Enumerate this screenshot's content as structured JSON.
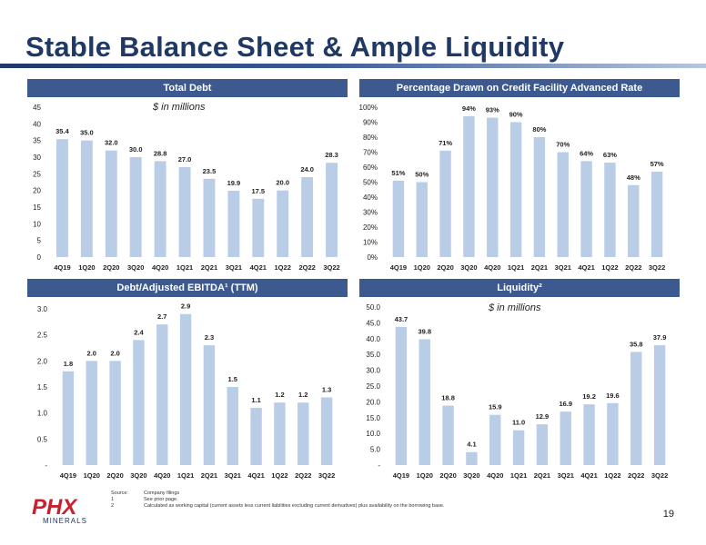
{
  "page": {
    "title": "Stable Balance Sheet & Ample Liquidity",
    "page_number": "19",
    "footnotes": [
      {
        "key": "Source:",
        "text": "Company filings"
      },
      {
        "key": "1",
        "text": "See prior page."
      },
      {
        "key": "2",
        "text": "Calculated as working capital (current assets less current liabilities excluding current derivatives) plus availability on the borrowing base."
      }
    ],
    "logo_text": "PHX",
    "logo_subtext": "MINERALS"
  },
  "colors": {
    "bar": "#b9cde6",
    "header": "#3c5a8f",
    "title": "#1f3864",
    "logo_red": "#c8202f",
    "logo_blue": "#1f3864"
  },
  "chart_data": [
    {
      "type": "bar",
      "title": "Total Debt",
      "subtitle": "$ in millions",
      "categories": [
        "4Q19",
        "1Q20",
        "2Q20",
        "3Q20",
        "4Q20",
        "1Q21",
        "2Q21",
        "3Q21",
        "4Q21",
        "1Q22",
        "2Q22",
        "3Q22"
      ],
      "values": [
        35.4,
        35.0,
        32.0,
        30.0,
        28.8,
        27.0,
        23.5,
        19.9,
        17.5,
        20.0,
        24.0,
        28.3
      ],
      "labels": [
        "35.4",
        "35.0",
        "32.0",
        "30.0",
        "28.8",
        "27.0",
        "23.5",
        "19.9",
        "17.5",
        "20.0",
        "24.0",
        "28.3"
      ],
      "yticks": [
        "0",
        "5",
        "10",
        "15",
        "20",
        "25",
        "30",
        "35",
        "40",
        "45"
      ],
      "ylim": [
        0,
        45
      ]
    },
    {
      "type": "bar",
      "title": "Percentage Drawn on Credit Facility Advanced Rate",
      "subtitle": "",
      "categories": [
        "4Q19",
        "1Q20",
        "2Q20",
        "3Q20",
        "4Q20",
        "1Q21",
        "2Q21",
        "3Q21",
        "4Q21",
        "1Q22",
        "2Q22",
        "3Q22"
      ],
      "values": [
        51,
        50,
        71,
        94,
        93,
        90,
        80,
        70,
        64,
        63,
        48,
        57
      ],
      "labels": [
        "51%",
        "50%",
        "71%",
        "94%",
        "93%",
        "90%",
        "80%",
        "70%",
        "64%",
        "63%",
        "48%",
        "57%"
      ],
      "yticks": [
        "0%",
        "10%",
        "20%",
        "30%",
        "40%",
        "50%",
        "60%",
        "70%",
        "80%",
        "90%",
        "100%"
      ],
      "ylim": [
        0,
        100
      ]
    },
    {
      "type": "bar",
      "title": "Debt/Adjusted EBITDA¹ (TTM)",
      "subtitle": "",
      "categories": [
        "4Q19",
        "1Q20",
        "2Q20",
        "3Q20",
        "4Q20",
        "1Q21",
        "2Q21",
        "3Q21",
        "4Q21",
        "1Q22",
        "2Q22",
        "3Q22"
      ],
      "values": [
        1.8,
        2.0,
        2.0,
        2.4,
        2.7,
        2.9,
        2.3,
        1.5,
        1.1,
        1.2,
        1.2,
        1.3
      ],
      "labels": [
        "1.8",
        "2.0",
        "2.0",
        "2.4",
        "2.7",
        "2.9",
        "2.3",
        "1.5",
        "1.1",
        "1.2",
        "1.2",
        "1.3"
      ],
      "yticks": [
        "-",
        "0.5",
        "1.0",
        "1.5",
        "2.0",
        "2.5",
        "3.0"
      ],
      "ylim": [
        0,
        3.0
      ]
    },
    {
      "type": "bar",
      "title": "Liquidity²",
      "subtitle": "$ in millions",
      "categories": [
        "4Q19",
        "1Q20",
        "2Q20",
        "3Q20",
        "4Q20",
        "1Q21",
        "2Q21",
        "3Q21",
        "4Q21",
        "1Q22",
        "2Q22",
        "3Q22"
      ],
      "values": [
        43.7,
        39.8,
        18.8,
        4.1,
        15.9,
        11.0,
        12.9,
        16.9,
        19.2,
        19.6,
        35.8,
        37.9
      ],
      "labels": [
        "43.7",
        "39.8",
        "18.8",
        "4.1",
        "15.9",
        "11.0",
        "12.9",
        "16.9",
        "19.2",
        "19.6",
        "35.8",
        "37.9"
      ],
      "yticks": [
        "-",
        "5.0",
        "10.0",
        "15.0",
        "20.0",
        "25.0",
        "30.0",
        "35.0",
        "40.0",
        "45.0",
        "50.0"
      ],
      "ylim": [
        0,
        50
      ]
    }
  ]
}
